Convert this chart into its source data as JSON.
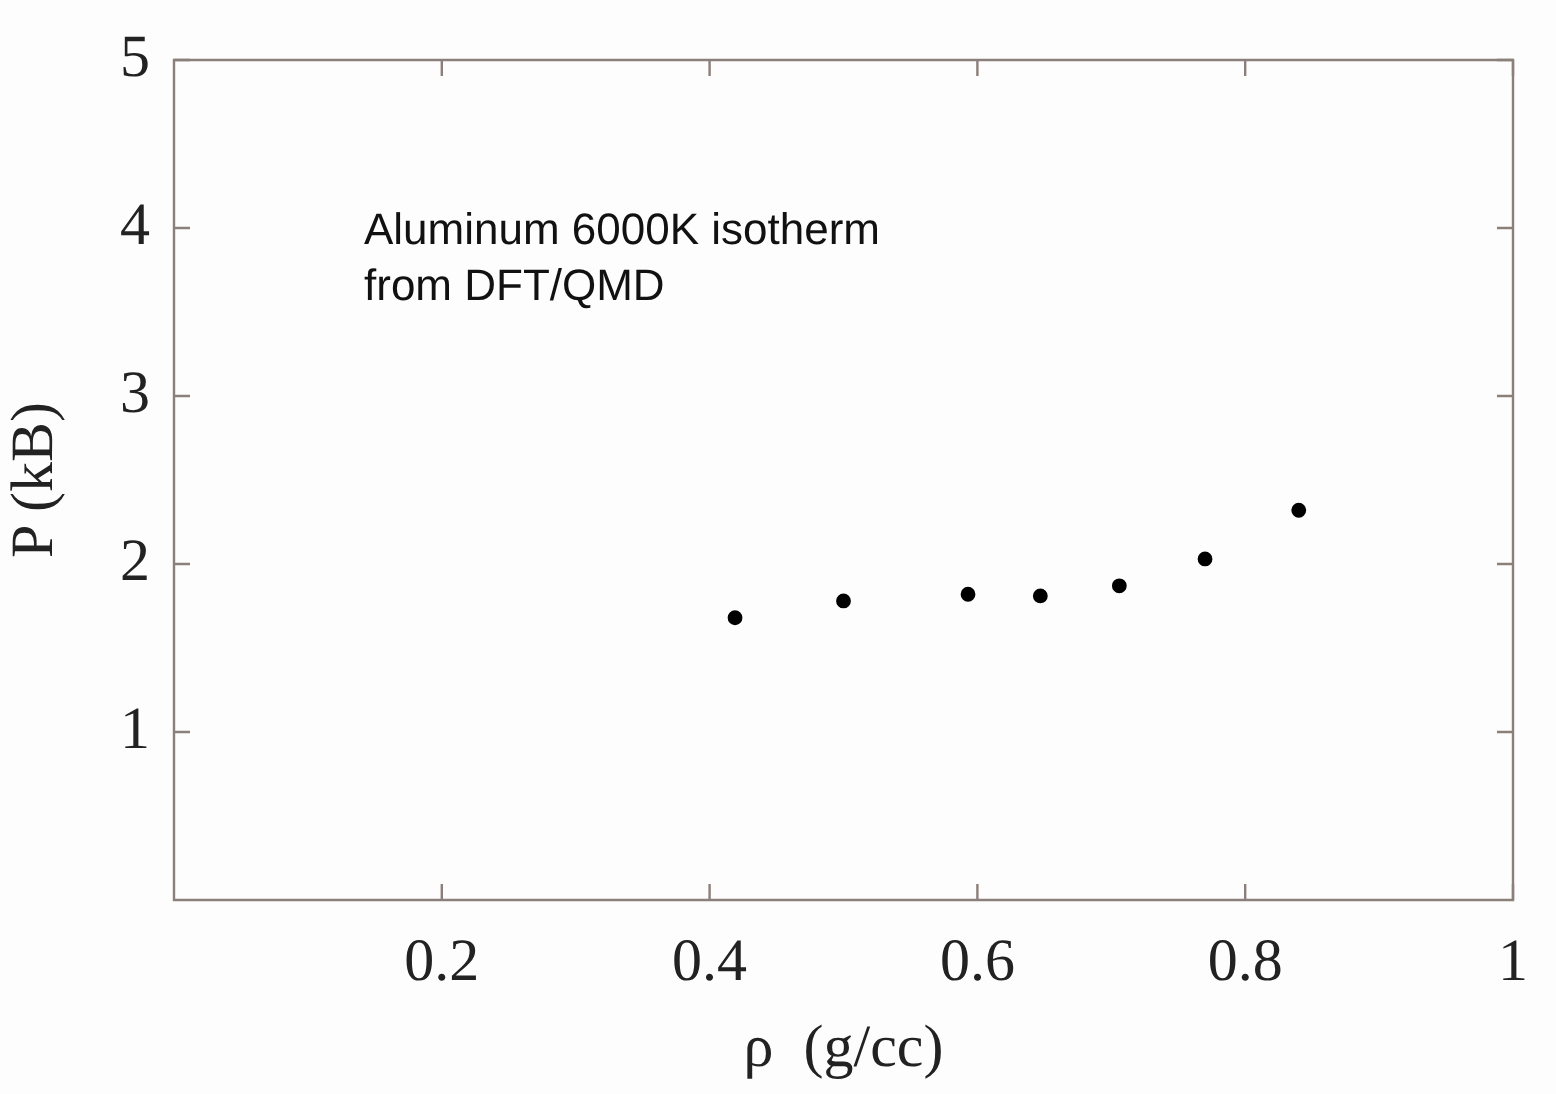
{
  "chart_data": {
    "type": "scatter",
    "xlabel": "ρ  (g/cc)",
    "ylabel": "P (kB)",
    "annotations": [
      "Aluminum 6000K isotherm",
      "from DFT/QMD"
    ],
    "x": [
      0.419,
      0.5,
      0.593,
      0.647,
      0.706,
      0.77,
      0.84
    ],
    "series": [
      {
        "color": "#000000",
        "values": [
          1.68,
          1.78,
          1.82,
          1.81,
          1.87,
          2.03,
          2.32
        ]
      }
    ],
    "xlim": [
      0,
      1
    ],
    "xticks": [
      0.2,
      0.4,
      0.6,
      0.8,
      1
    ],
    "ylim": [
      0,
      5
    ],
    "yticks": [
      1,
      2,
      3,
      4,
      5
    ],
    "grid": false,
    "legend": false,
    "marker": "circle"
  }
}
